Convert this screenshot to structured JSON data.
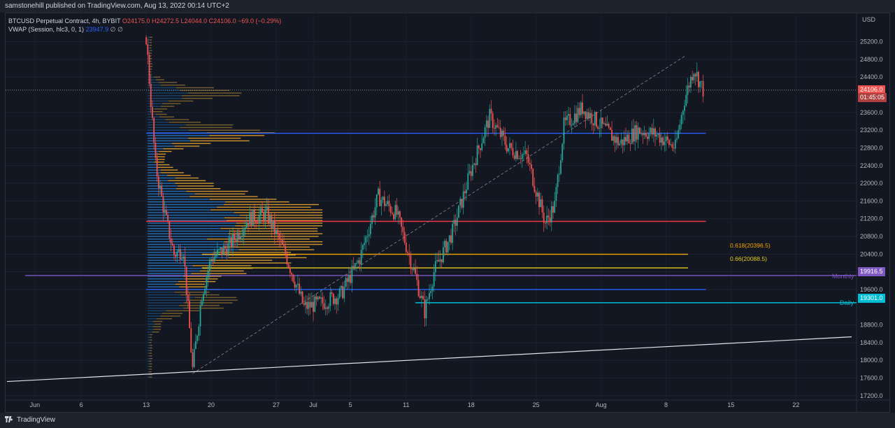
{
  "publisher_line": "samstonehill published on TradingView.com, Aug 13, 2022 00:14 UTC+2",
  "legend": {
    "symbol": "BTCUSD Perpetual Contract, 4h, BYBIT",
    "open": "O24175.0",
    "high": "H24272.5",
    "low": "L24044.0",
    "close": "C24106.0",
    "change": "−69.0 (−0.29%)",
    "vwap_label": "VWAP (Session, hlc3, 0, 1)",
    "vwap_value": "23947.9",
    "vwap_icons": "∅ ∅"
  },
  "price_axis": {
    "currency": "USD",
    "ticks": [
      "25200.0",
      "24800.0",
      "24400.0",
      "23600.0",
      "23200.0",
      "22800.0",
      "22400.0",
      "22000.0",
      "21600.0",
      "21200.0",
      "20800.0",
      "20400.0",
      "20000.0",
      "19600.0",
      "18800.0",
      "18400.0",
      "18000.0",
      "17600.0",
      "17200.0"
    ]
  },
  "time_axis": {
    "ticks": [
      "Jun",
      "6",
      "13",
      "20",
      "27",
      "Jul",
      "5",
      "11",
      "18",
      "25",
      "Aug",
      "8",
      "15",
      "22"
    ]
  },
  "badges": {
    "last_price": "24106.0",
    "countdown": "01:45:05",
    "monthly_value": "19916.5",
    "daily_value": "19301.0"
  },
  "annotations": {
    "fib_618": "0.618(20396.5)",
    "fib_66": "0.66(20088.5)",
    "monthly_label": "Monthly",
    "daily_label": "Daily"
  },
  "footer": {
    "brand": "TradingView"
  },
  "colors": {
    "up": "#26a69a",
    "down": "#ef5350",
    "vp_orange": "#f2b93b",
    "vp_blue": "#2196f3",
    "vp_value_orange": "#f0a92e",
    "vp_value_blue": "#2b8be6",
    "hline_blue": "#2962ff",
    "hline_red": "#f23645",
    "fib_618": "#f7a600",
    "fib_66": "#e4c91a",
    "monthly": "#7e57c2",
    "daily": "#00bcd4",
    "last_price": "#ef5350",
    "countdown_bg": "#b04040"
  },
  "chart_data": {
    "type": "candlestick",
    "y_unit": "USD",
    "ylim": [
      16960,
      25620
    ],
    "x_range": [
      "2022-05-29",
      "2022-08-28"
    ],
    "levels": [
      {
        "name": "value area high",
        "price": 23130
      },
      {
        "name": "point of control",
        "price": 21140
      },
      {
        "name": "0.618",
        "price": 20396.5
      },
      {
        "name": "0.66",
        "price": 20088.5
      },
      {
        "name": "Monthly",
        "price": 19916.5
      },
      {
        "name": "value area low",
        "price": 19600
      },
      {
        "name": "Daily",
        "price": 19301.0
      }
    ],
    "trend_lines": [
      {
        "style": "solid",
        "from": [
          "2022-05-29",
          17520
        ],
        "to": [
          "2022-08-28",
          18530
        ]
      },
      {
        "style": "dashed",
        "from": [
          "2022-06-18",
          17700
        ],
        "to": [
          "2022-08-10",
          24870
        ]
      }
    ],
    "price_path": [
      [
        "2022-06-13",
        25300
      ],
      [
        "2022-06-14",
        22400
      ],
      [
        "2022-06-15",
        21300
      ],
      [
        "2022-06-16",
        20400
      ],
      [
        "2022-06-17",
        20500
      ],
      [
        "2022-06-18",
        17800
      ],
      [
        "2022-06-19",
        19500
      ],
      [
        "2022-06-20",
        20300
      ],
      [
        "2022-06-22",
        20600
      ],
      [
        "2022-06-24",
        21200
      ],
      [
        "2022-06-26",
        21300
      ],
      [
        "2022-06-28",
        20400
      ],
      [
        "2022-06-30",
        19200
      ],
      [
        "2022-07-02",
        19300
      ],
      [
        "2022-07-04",
        19500
      ],
      [
        "2022-07-06",
        20300
      ],
      [
        "2022-07-08",
        21700
      ],
      [
        "2022-07-10",
        21300
      ],
      [
        "2022-07-12",
        19900
      ],
      [
        "2022-07-13",
        19100
      ],
      [
        "2022-07-14",
        20000
      ],
      [
        "2022-07-16",
        20900
      ],
      [
        "2022-07-18",
        22300
      ],
      [
        "2022-07-20",
        23500
      ],
      [
        "2022-07-22",
        22800
      ],
      [
        "2022-07-24",
        22600
      ],
      [
        "2022-07-26",
        21100
      ],
      [
        "2022-07-27",
        21500
      ],
      [
        "2022-07-28",
        23300
      ],
      [
        "2022-07-30",
        23700
      ],
      [
        "2022-08-01",
        23300
      ],
      [
        "2022-08-03",
        22900
      ],
      [
        "2022-08-05",
        23200
      ],
      [
        "2022-08-07",
        23100
      ],
      [
        "2022-08-09",
        22800
      ],
      [
        "2022-08-10",
        23900
      ],
      [
        "2022-08-11",
        24600
      ],
      [
        "2022-08-12",
        24106
      ]
    ]
  }
}
